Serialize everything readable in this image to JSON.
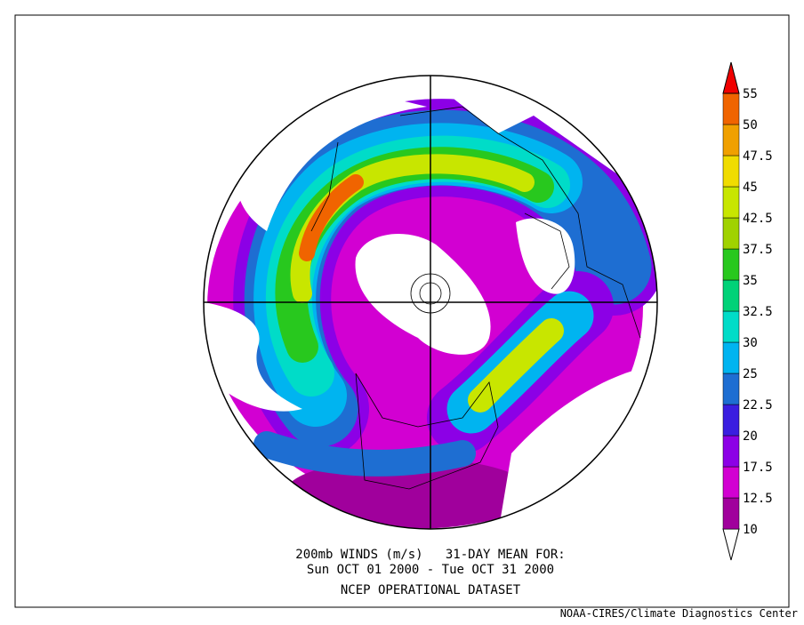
{
  "title_lines": [
    "200mb WINDS (m/s)   31-DAY MEAN FOR:",
    "Sun OCT 01 2000 - Tue OCT 31 2000",
    "NCEP OPERATIONAL DATASET"
  ],
  "credit": "NOAA-CIRES/Climate Diagnostics Center",
  "colorbar": {
    "labels": [
      "10",
      "12.5",
      "17.5",
      "20",
      "22.5",
      "25",
      "30",
      "32.5",
      "35",
      "37.5",
      "42.5",
      "45",
      "47.5",
      "50",
      "55"
    ],
    "colors": [
      "#ffffff",
      "#a0009c",
      "#d200d2",
      "#8c00e6",
      "#3a1ee0",
      "#1e6ed2",
      "#00b4f0",
      "#00dcc8",
      "#00d278",
      "#28c81e",
      "#a0d200",
      "#c8e600",
      "#f0dc00",
      "#f0a000",
      "#f06400",
      "#f00000"
    ]
  }
}
